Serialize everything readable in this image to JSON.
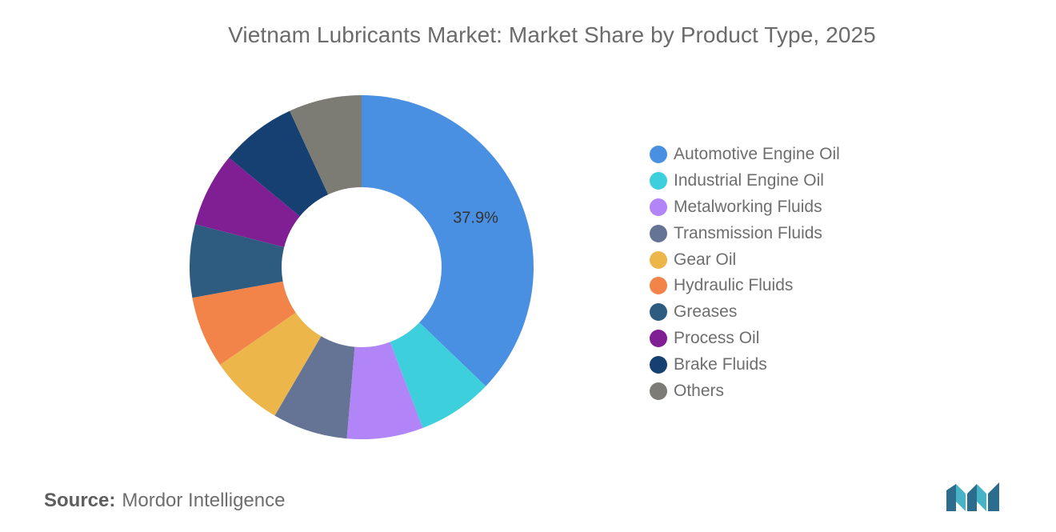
{
  "title": "Vietnam Lubricants Market: Market Share by Product Type, 2025",
  "chart_data": {
    "type": "pie",
    "style": "donut",
    "categories": [
      "Automotive Engine Oil",
      "Industrial Engine Oil",
      "Metalworking Fluids",
      "Transmission Fluids",
      "Gear Oil",
      "Hydraulic Fluids",
      "Greases",
      "Process Oil",
      "Brake Fluids",
      "Others"
    ],
    "values": [
      37.9,
      7.2,
      7.3,
      7.2,
      7.1,
      6.9,
      7.0,
      7.1,
      7.3,
      7.0
    ],
    "colors": [
      "#4a90e2",
      "#3ecfdc",
      "#b184f8",
      "#657495",
      "#ecb64b",
      "#f2844a",
      "#2e5b80",
      "#7f1f93",
      "#163f72",
      "#7c7b74"
    ],
    "data_labels": [
      {
        "category": "Automotive Engine Oil",
        "text": "37.9%"
      }
    ],
    "legend_position": "right"
  },
  "source": {
    "label": "Source:",
    "text": "Mordor Intelligence"
  }
}
